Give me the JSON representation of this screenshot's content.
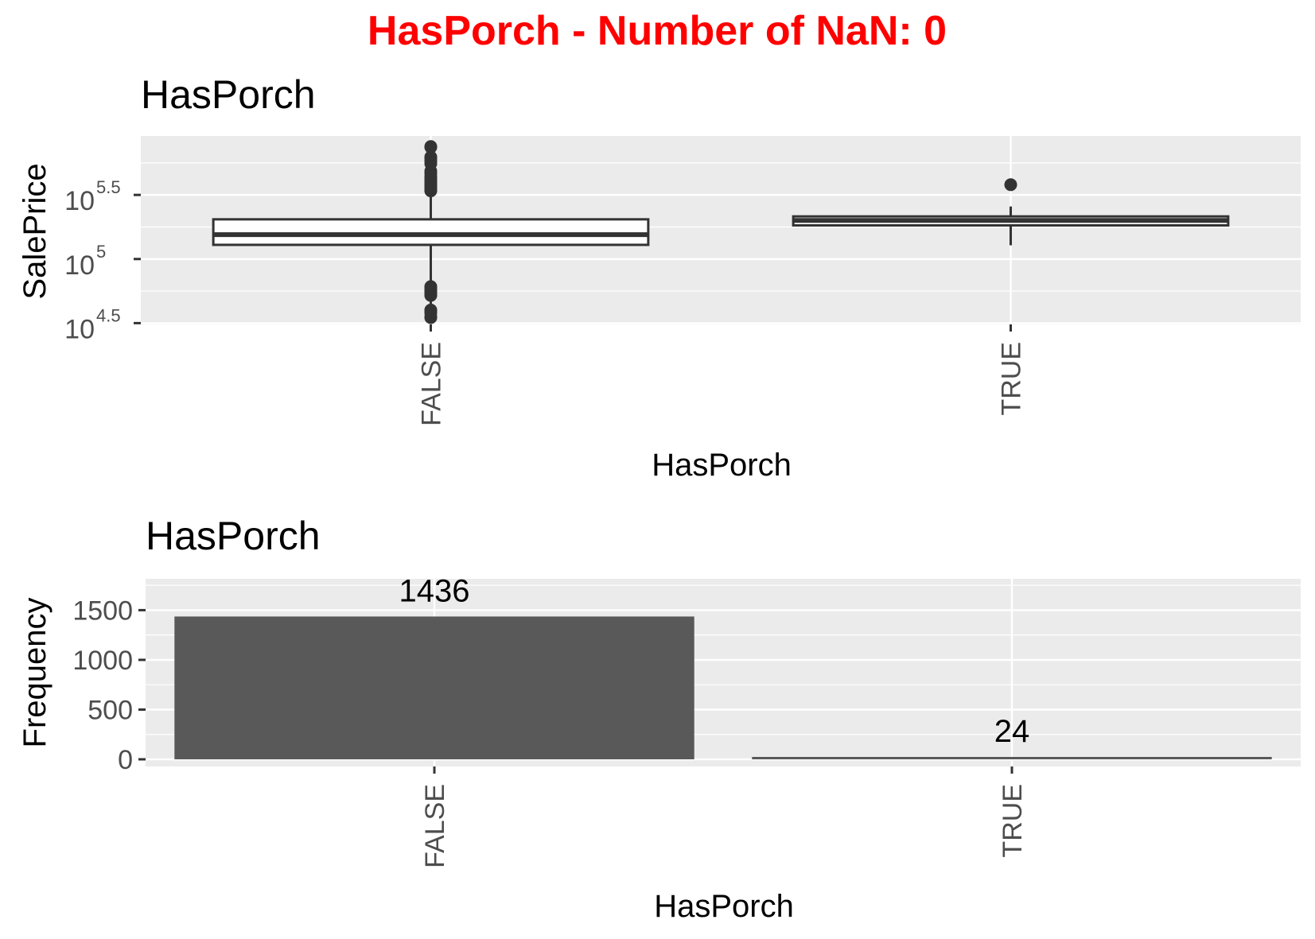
{
  "main_title": "HasPorch - Number of NaN: 0",
  "colors": {
    "main_title": "#ff0000",
    "panel_background": "#ebebeb",
    "grid": "#ffffff",
    "box_stroke": "#333333",
    "bar_fill": "#595959",
    "tick_text": "#4d4d4d"
  },
  "chart_data": [
    {
      "type": "box",
      "title": "HasPorch",
      "xlabel": "HasPorch",
      "ylabel": "SalePrice",
      "y_scale": "log10",
      "ylim_log10": [
        4.49,
        5.96
      ],
      "y_ticks": [
        {
          "base": "10",
          "exp": "4.5",
          "value_log10": 4.5
        },
        {
          "base": "10",
          "exp": "5",
          "value_log10": 5.0
        },
        {
          "base": "10",
          "exp": "5.5",
          "value_log10": 5.5
        }
      ],
      "categories": [
        "FALSE",
        "TRUE"
      ],
      "boxes": [
        {
          "category": "FALSE",
          "q1": 129000,
          "median": 155000,
          "q3": 204000,
          "whisker_low": 35000,
          "whisker_high": 335000,
          "outliers_high": [
            340000,
            345000,
            350000,
            355000,
            360000,
            368000,
            375000,
            385000,
            395000,
            410000,
            425000,
            440000,
            465000,
            485000,
            555000,
            582000,
            611000,
            625000,
            745000,
            755000
          ],
          "outliers_low": [
            34900,
            35311,
            37900,
            39300,
            40000,
            52000,
            52500,
            55000,
            55993,
            58500,
            60000,
            61000
          ]
        },
        {
          "category": "TRUE",
          "q1": 183000,
          "median": 200000,
          "q3": 215000,
          "whisker_low": 128000,
          "whisker_high": 257000,
          "outliers_high": [
            380000
          ],
          "outliers_low": []
        }
      ]
    },
    {
      "type": "bar",
      "title": "HasPorch",
      "xlabel": "HasPorch",
      "ylabel": "Frequency",
      "ylim": [
        -72,
        1815
      ],
      "y_ticks": [
        0,
        500,
        1000,
        1500
      ],
      "categories": [
        "FALSE",
        "TRUE"
      ],
      "values": [
        1436,
        24
      ],
      "data_labels": [
        "1436",
        "24"
      ]
    }
  ]
}
